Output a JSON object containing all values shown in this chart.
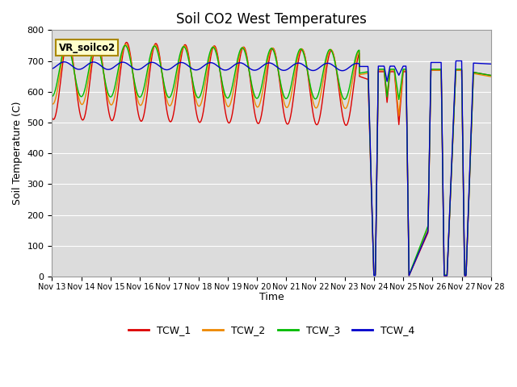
{
  "title": "Soil CO2 West Temperatures",
  "ylabel": "Soil Temperature (C)",
  "xlabel": "Time",
  "ylim": [
    0,
    800
  ],
  "legend_label": "VR_soilco2",
  "series_colors": [
    "#dd0000",
    "#ee8800",
    "#00bb00",
    "#0000cc"
  ],
  "series_names": [
    "TCW_1",
    "TCW_2",
    "TCW_3",
    "TCW_4"
  ],
  "background_color": "#dcdcdc",
  "fig_color": "#ffffff",
  "x_tick_labels": [
    "Nov 13",
    "Nov 14",
    "Nov 15",
    "Nov 16",
    "Nov 17",
    "Nov 18",
    "Nov 19",
    "Nov 20",
    "Nov 21",
    "Nov 22",
    "Nov 23",
    "Nov 24",
    "Nov 25",
    "Nov 26",
    "Nov 27",
    "Nov 28"
  ],
  "yticks": [
    0,
    100,
    200,
    300,
    400,
    500,
    600,
    700,
    800
  ]
}
